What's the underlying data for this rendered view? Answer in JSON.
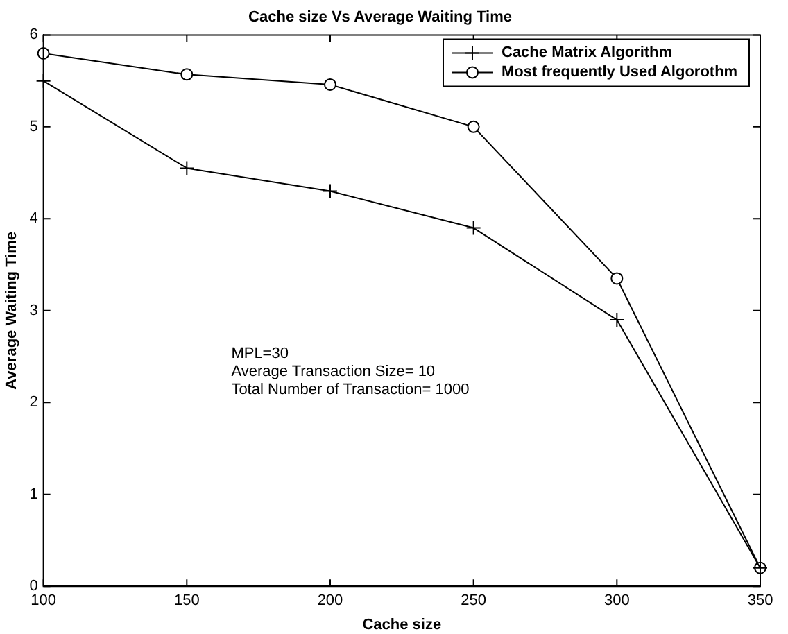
{
  "chart_data": {
    "type": "line",
    "title": "Cache size Vs Average Waiting Time",
    "xlabel": "Cache size",
    "ylabel": "Average Waiting Time",
    "x": [
      100,
      150,
      200,
      250,
      300,
      350
    ],
    "series": [
      {
        "name": "Cache Matrix Algorithm",
        "color": "#000000",
        "marker": "cross",
        "values": [
          5.5,
          4.55,
          4.3,
          3.9,
          2.9,
          0.2
        ]
      },
      {
        "name": "Most frequently Used Algorothm",
        "color": "#000000",
        "marker": "circle",
        "values": [
          5.8,
          5.57,
          5.46,
          5.0,
          3.35,
          0.2
        ]
      }
    ],
    "xlim": [
      100,
      350
    ],
    "xticks": [
      100,
      150,
      200,
      250,
      300,
      350
    ],
    "ylim": [
      0,
      6
    ],
    "yticks": [
      0,
      1,
      2,
      3,
      4,
      5,
      6
    ],
    "grid": false,
    "legend": "top right",
    "line_style": "solid",
    "annotations": [
      "MPL=30",
      "Average Transaction Size= 10",
      "Total Number of Transaction= 1000"
    ]
  }
}
